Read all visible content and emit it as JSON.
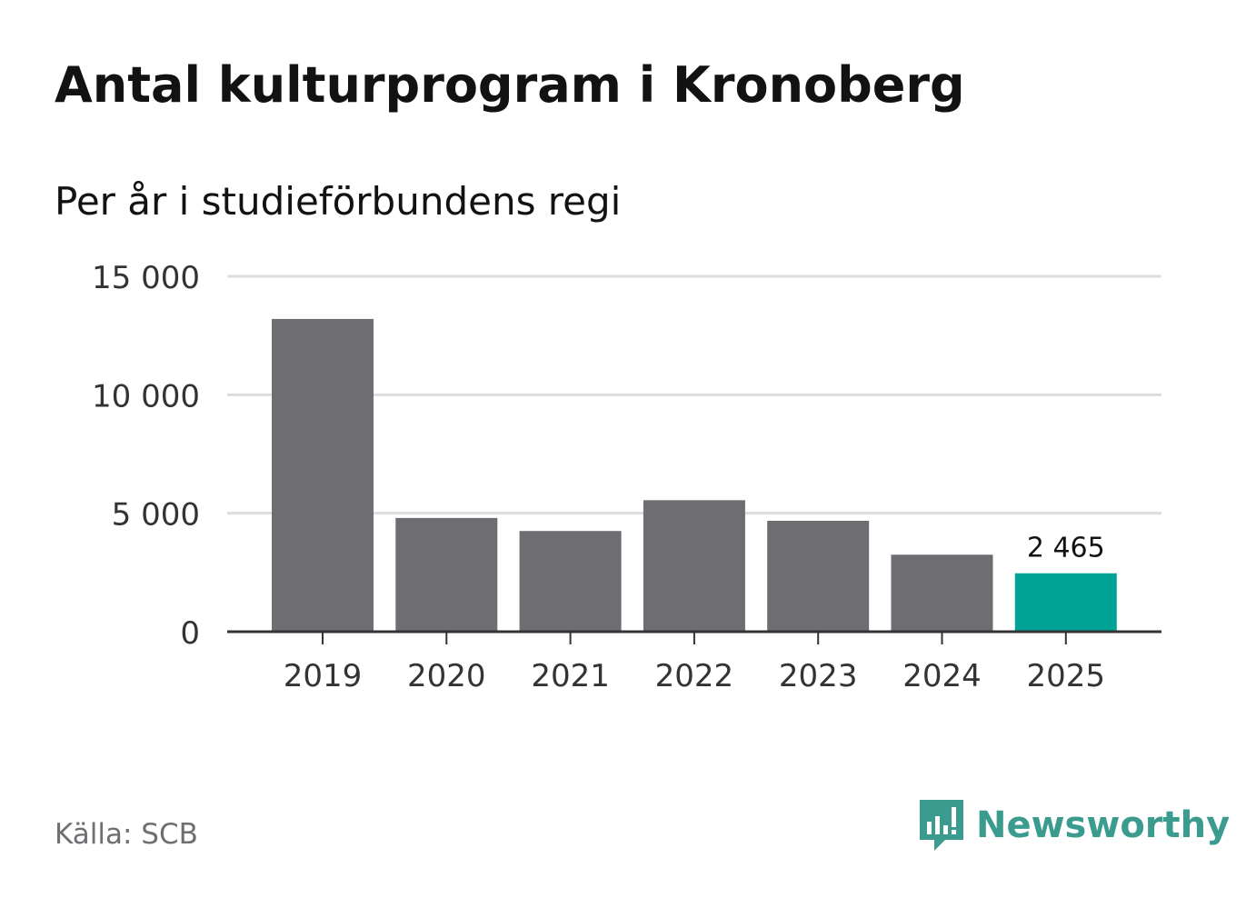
{
  "title": "Antal kulturprogram i Kronoberg",
  "subtitle": "Per år i studieförbundens regi",
  "source": "Källa: SCB",
  "brand": {
    "name": "Newsworthy",
    "icon": "newsworthy-logo-icon",
    "color": "#3a9b8e"
  },
  "colors": {
    "bar": "#6e6d72",
    "highlight": "#00a396",
    "grid": "#dddddd",
    "axis": "#333333"
  },
  "chart_data": {
    "type": "bar",
    "categories": [
      "2019",
      "2020",
      "2021",
      "2022",
      "2023",
      "2024",
      "2025"
    ],
    "values": [
      13200,
      4800,
      4250,
      5550,
      4680,
      3250,
      2465
    ],
    "highlight_index": 6,
    "data_labels": [
      {
        "index": 6,
        "text": "2 465"
      }
    ],
    "yticks": [
      0,
      5000,
      10000,
      15000
    ],
    "ytick_labels": [
      "0",
      "5 000",
      "10 000",
      "15 000"
    ],
    "ylim": [
      0,
      15000
    ],
    "grid": true,
    "legend": false,
    "xlabel": "",
    "ylabel": ""
  }
}
